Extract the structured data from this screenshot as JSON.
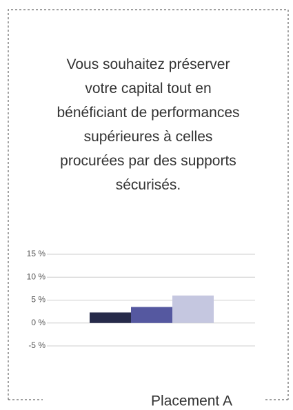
{
  "intro_lines": [
    "Vous souhaitez préserver",
    "votre capital tout en",
    "bénéficiant de performances",
    "supérieures à celles",
    "procurées par des supports",
    "sécurisés."
  ],
  "chart_data": {
    "type": "bar",
    "categories": [
      null,
      null,
      null
    ],
    "values": [
      2.3,
      3.5,
      6
    ],
    "colors": [
      "#262a4a",
      "#5558a0",
      "#c5c7e0"
    ],
    "x_label": "Placement A",
    "ylim": [
      -5,
      15
    ],
    "yticks": [
      {
        "value": 15,
        "label": "15 %"
      },
      {
        "value": 10,
        "label": "10 %"
      },
      {
        "value": 5,
        "label": "5 %"
      },
      {
        "value": 0,
        "label": "0 %"
      },
      {
        "value": -5,
        "label": "-5 %"
      }
    ],
    "grid": true
  }
}
